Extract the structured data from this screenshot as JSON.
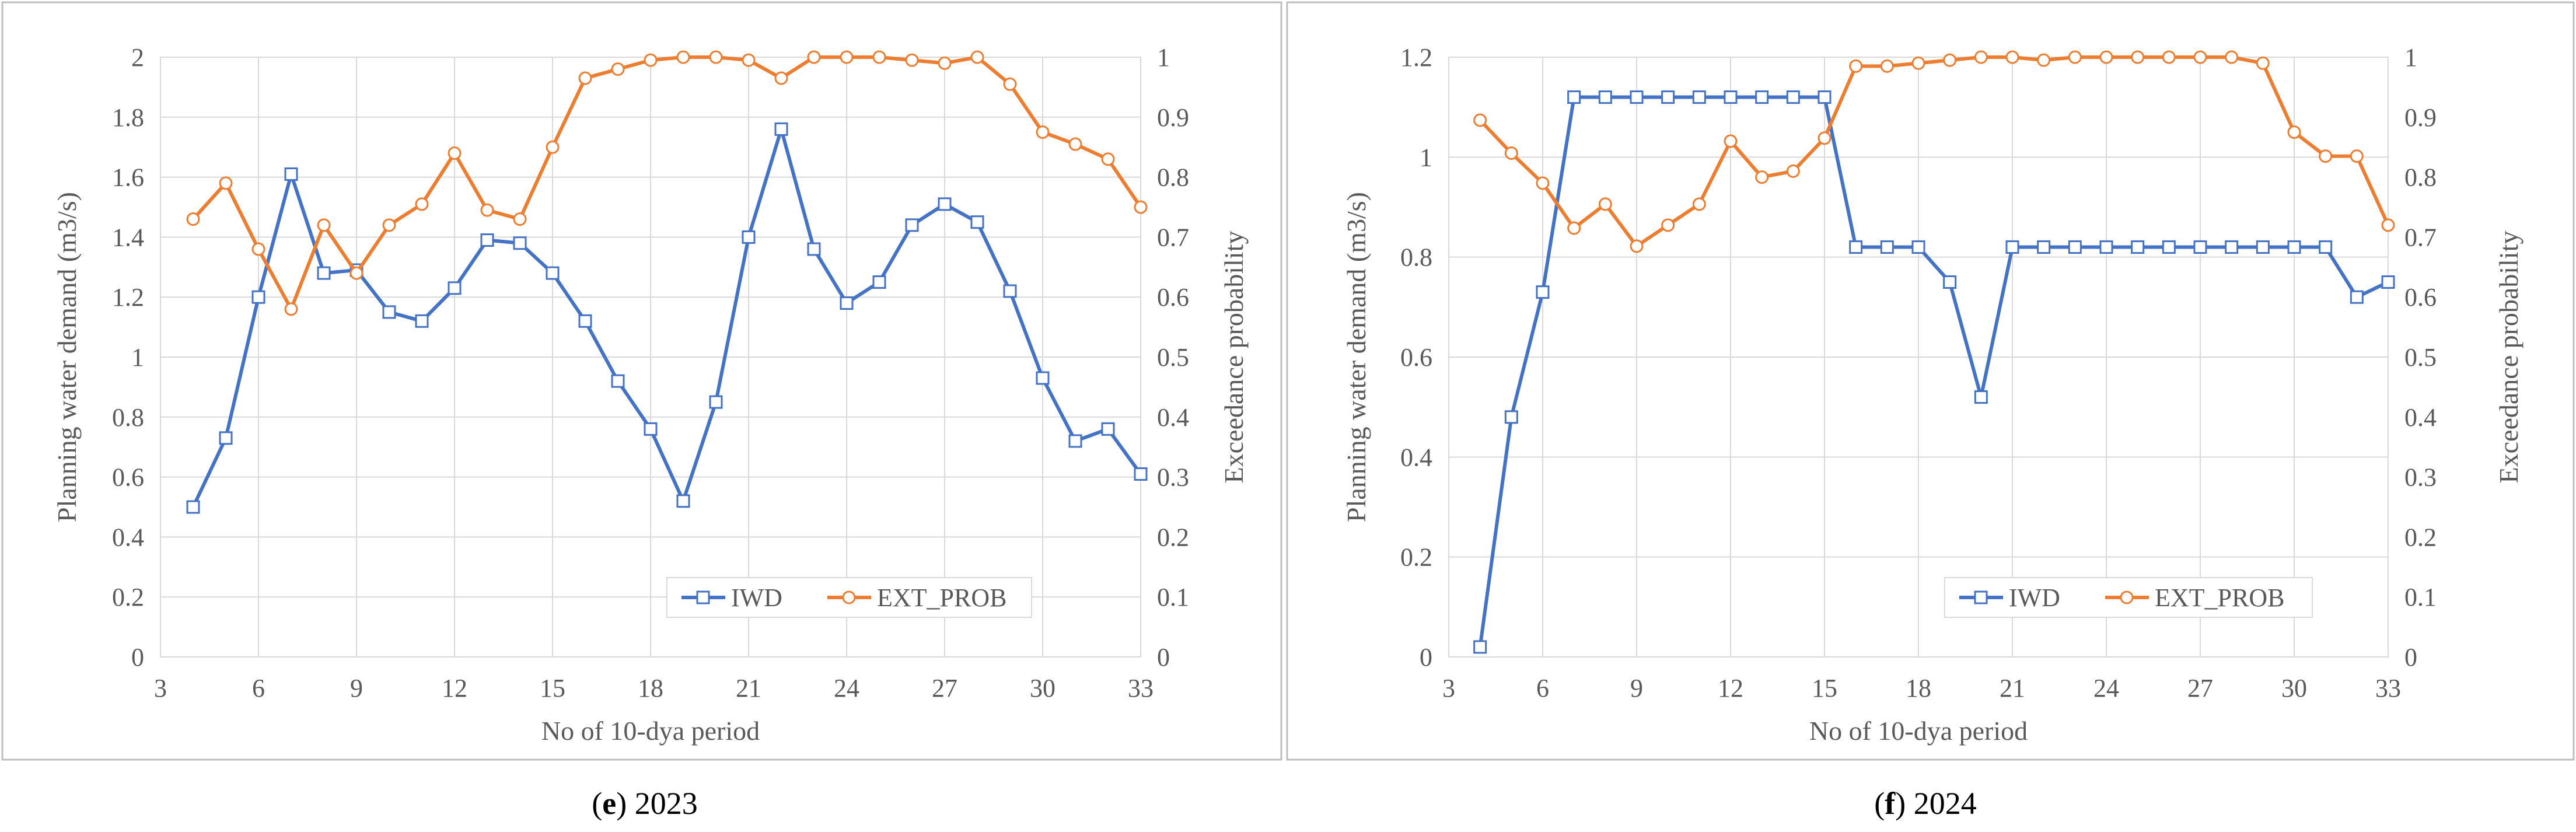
{
  "colors": {
    "iwd": "#4472C4",
    "ext_prob": "#ED7D31",
    "grid": "#D9D9D9",
    "axis_text": "#595959",
    "frame": "#BFBFBF"
  },
  "chart_data": [
    {
      "type": "line",
      "panel": "e",
      "caption_label": "e",
      "caption_year": "2023",
      "xlabel": "No of 10-dya period",
      "ylabel": "Planning water demand (m3/s)",
      "y2label": "Exceedance  probability",
      "xlim": [
        3,
        33
      ],
      "xticks": [
        3,
        6,
        9,
        12,
        15,
        18,
        21,
        24,
        27,
        30,
        33
      ],
      "xtick_labels": [
        "3",
        "6",
        "9",
        "12",
        "15",
        "18",
        "21",
        "24",
        "27",
        "30",
        "33"
      ],
      "ylim": [
        0,
        2
      ],
      "yticks": [
        0,
        0.2,
        0.4,
        0.6,
        0.8,
        1,
        1.2,
        1.4,
        1.6,
        1.8,
        2
      ],
      "ytick_labels": [
        "0",
        "0.2",
        "0.4",
        "0.6",
        "0.8",
        "1",
        "1.2",
        "1.4",
        "1.6",
        "1.8",
        "2"
      ],
      "y2lim": [
        0,
        1
      ],
      "y2ticks": [
        0,
        0.1,
        0.2,
        0.3,
        0.4,
        0.5,
        0.6,
        0.7,
        0.8,
        0.9,
        1
      ],
      "y2tick_labels": [
        "0",
        "0.1",
        "0.2",
        "0.3",
        "0.4",
        "0.5",
        "0.6",
        "0.7",
        "0.8",
        "0.9",
        "1"
      ],
      "grid": true,
      "legend_position": "bottom-right",
      "x": [
        4,
        5,
        6,
        7,
        8,
        9,
        10,
        11,
        12,
        13,
        14,
        15,
        16,
        17,
        18,
        19,
        20,
        21,
        22,
        23,
        24,
        25,
        26,
        27,
        28,
        29,
        30,
        31,
        32,
        33
      ],
      "series": [
        {
          "name": "IWD",
          "axis": "left",
          "marker": "square",
          "values": [
            0.5,
            0.73,
            1.2,
            1.61,
            1.28,
            1.29,
            1.15,
            1.12,
            1.23,
            1.39,
            1.38,
            1.28,
            1.12,
            0.92,
            0.76,
            0.52,
            0.85,
            1.4,
            1.76,
            1.36,
            1.18,
            1.25,
            1.44,
            1.51,
            1.45,
            1.22,
            0.93,
            0.72,
            0.76,
            0.61
          ]
        },
        {
          "name": "EXT_PROB",
          "axis": "right",
          "marker": "circle",
          "values": [
            0.73,
            0.79,
            0.68,
            0.58,
            0.72,
            0.64,
            0.72,
            0.755,
            0.84,
            0.745,
            0.73,
            0.85,
            0.965,
            0.98,
            0.995,
            1.0,
            1.0,
            0.995,
            0.965,
            1.0,
            1.0,
            1.0,
            0.995,
            0.99,
            1.0,
            0.955,
            0.875,
            0.855,
            0.83,
            0.75
          ]
        }
      ]
    },
    {
      "type": "line",
      "panel": "f",
      "caption_label": "f",
      "caption_year": "2024",
      "xlabel": "No of 10-dya period",
      "ylabel": "Planning water demand (m3/s)",
      "y2label": "Exceedance  probability",
      "xlim": [
        3,
        33
      ],
      "xticks": [
        3,
        6,
        9,
        12,
        15,
        18,
        21,
        24,
        27,
        30,
        33
      ],
      "xtick_labels": [
        "3",
        "6",
        "9",
        "12",
        "15",
        "18",
        "21",
        "24",
        "27",
        "30",
        "33"
      ],
      "ylim": [
        0,
        1.2
      ],
      "yticks": [
        0,
        0.2,
        0.4,
        0.6,
        0.8,
        1,
        1.2
      ],
      "ytick_labels": [
        "0",
        "0.2",
        "0.4",
        "0.6",
        "0.8",
        "1",
        "1.2"
      ],
      "y2lim": [
        0,
        1
      ],
      "y2ticks": [
        0,
        0.1,
        0.2,
        0.3,
        0.4,
        0.5,
        0.6,
        0.7,
        0.8,
        0.9,
        1
      ],
      "y2tick_labels": [
        "0",
        "0.1",
        "0.2",
        "0.3",
        "0.4",
        "0.5",
        "0.6",
        "0.7",
        "0.8",
        "0.9",
        "1"
      ],
      "grid": true,
      "legend_position": "bottom-right",
      "x": [
        4,
        5,
        6,
        7,
        8,
        9,
        10,
        11,
        12,
        13,
        14,
        15,
        16,
        17,
        18,
        19,
        20,
        21,
        22,
        23,
        24,
        25,
        26,
        27,
        28,
        29,
        30,
        31,
        32,
        33
      ],
      "series": [
        {
          "name": "IWD",
          "axis": "left",
          "marker": "square",
          "values": [
            0.02,
            0.48,
            0.73,
            1.12,
            1.12,
            1.12,
            1.12,
            1.12,
            1.12,
            1.12,
            1.12,
            1.12,
            0.82,
            0.82,
            0.82,
            0.75,
            0.52,
            0.82,
            0.82,
            0.82,
            0.82,
            0.82,
            0.82,
            0.82,
            0.82,
            0.82,
            0.82,
            0.82,
            0.72,
            0.75
          ]
        },
        {
          "name": "EXT_PROB",
          "axis": "right",
          "marker": "circle",
          "values": [
            0.895,
            0.84,
            0.79,
            0.715,
            0.755,
            0.685,
            0.72,
            0.755,
            0.86,
            0.8,
            0.81,
            0.865,
            0.985,
            0.985,
            0.99,
            0.995,
            1.0,
            1.0,
            0.995,
            1.0,
            1.0,
            1.0,
            1.0,
            1.0,
            1.0,
            0.99,
            0.875,
            0.835,
            0.835,
            0.72
          ]
        }
      ]
    }
  ]
}
